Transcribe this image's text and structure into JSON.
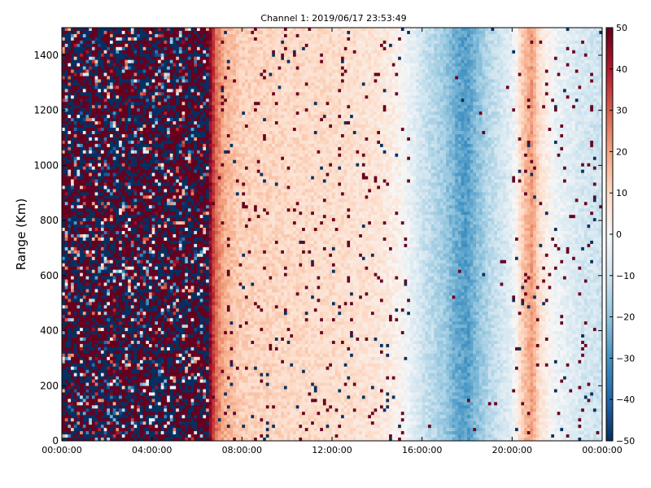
{
  "chart_data": {
    "type": "heatmap",
    "title": "Channel 1: 2019/06/17 23:53:49",
    "xlabel": "",
    "ylabel": "Range (Km)",
    "x_ticks": [
      "00:00:00",
      "04:00:00",
      "08:00:00",
      "12:00:00",
      "16:00:00",
      "20:00:00",
      "00:00:00"
    ],
    "x_range_hours": [
      0,
      24
    ],
    "y_ticks": [
      0,
      200,
      400,
      600,
      800,
      1000,
      1200,
      1400
    ],
    "ylim": [
      0,
      1500
    ],
    "colorbar": {
      "ticks": [
        50,
        40,
        30,
        20,
        10,
        0,
        -10,
        -20,
        -30,
        -40,
        -50
      ],
      "range": [
        -50,
        50
      ],
      "colormap": "RdBu_r",
      "high_color": "#67001f",
      "mid_color": "#f7f7f7",
      "low_color": "#053061"
    },
    "time_profile": {
      "hours": [
        0,
        4,
        6.4,
        6.6,
        6.8,
        7.2,
        8,
        10,
        12,
        14,
        15,
        16,
        17,
        17.5,
        18,
        18.5,
        19,
        20,
        20.5,
        20.9,
        21.2,
        22,
        23,
        24
      ],
      "values": [
        0,
        0,
        0,
        45,
        30,
        18,
        12,
        10,
        9,
        7,
        2,
        -10,
        -18,
        -25,
        -28,
        -20,
        -14,
        -5,
        14,
        22,
        8,
        -3,
        -8,
        -10
      ]
    },
    "noise_region_hours": [
      0,
      6.6
    ],
    "grid": false,
    "legend": "none"
  }
}
